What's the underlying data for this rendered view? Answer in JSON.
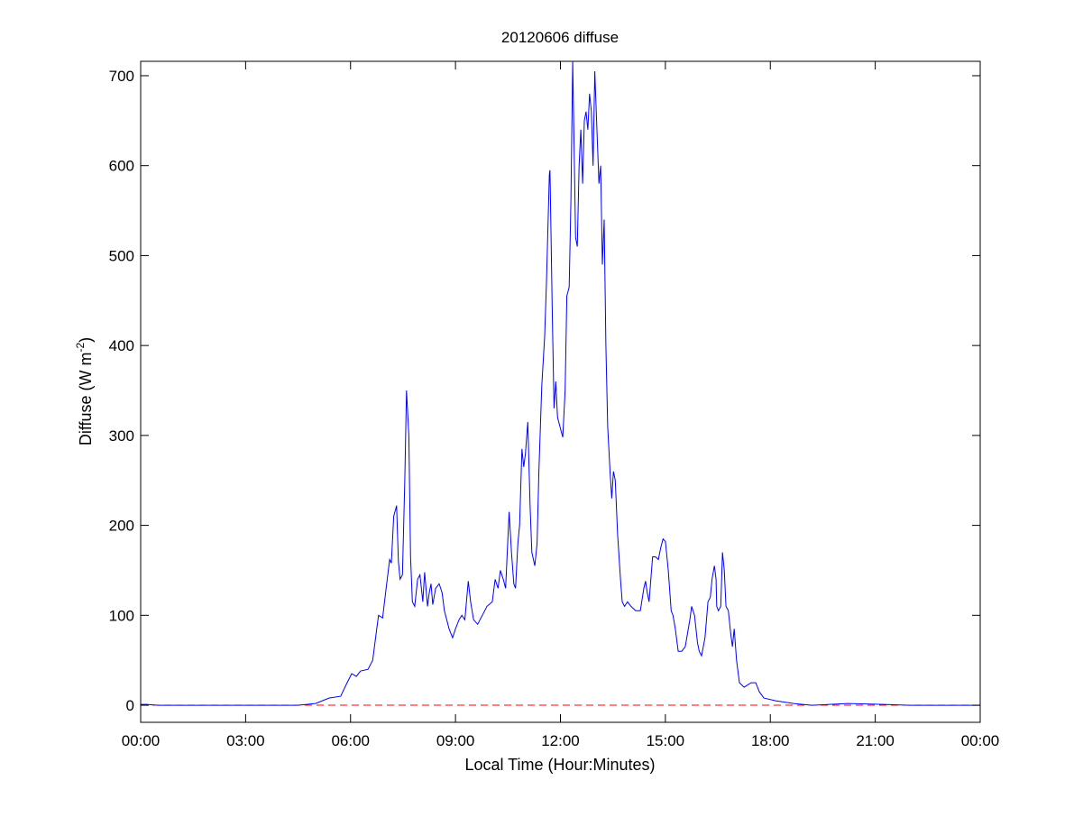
{
  "chart_data": {
    "type": "line",
    "title": "20120606 diffuse",
    "xlabel": "Local Time (Hour:Minutes)",
    "ylabel": "Diffuse (W m",
    "ylabel_sup": "-2",
    "ylabel_close": ")",
    "xlim": [
      "00:00",
      "24:00"
    ],
    "ylim": [
      -19,
      716
    ],
    "x_ticks": [
      "00:00",
      "03:00",
      "06:00",
      "09:00",
      "12:00",
      "15:00",
      "18:00",
      "21:00",
      "00:00"
    ],
    "y_ticks": [
      0,
      100,
      200,
      300,
      400,
      500,
      600,
      700
    ],
    "grid": false,
    "colors": {
      "series": "#0000ff",
      "reference": "#ff0000"
    },
    "reference_line": {
      "y": 0,
      "style": "dashed"
    },
    "series": [
      {
        "points": [
          [
            "00:00",
            1
          ],
          [
            "00:10",
            1
          ],
          [
            "00:30",
            0
          ],
          [
            "04:29",
            0
          ],
          [
            "05:00",
            2
          ],
          [
            "05:23",
            8
          ],
          [
            "05:43",
            10
          ],
          [
            "05:54",
            25
          ],
          [
            "06:02",
            35
          ],
          [
            "06:10",
            32
          ],
          [
            "06:17",
            38
          ],
          [
            "06:30",
            40
          ],
          [
            "06:38",
            50
          ],
          [
            "06:45",
            85
          ],
          [
            "06:48",
            100
          ],
          [
            "06:55",
            97
          ],
          [
            "07:01",
            130
          ],
          [
            "07:07",
            162
          ],
          [
            "07:10",
            158
          ],
          [
            "07:14",
            210
          ],
          [
            "07:19",
            222
          ],
          [
            "07:22",
            160
          ],
          [
            "07:25",
            140
          ],
          [
            "07:29",
            145
          ],
          [
            "07:33",
            250
          ],
          [
            "07:36",
            350
          ],
          [
            "07:40",
            300
          ],
          [
            "07:43",
            165
          ],
          [
            "07:46",
            115
          ],
          [
            "07:50",
            110
          ],
          [
            "07:55",
            140
          ],
          [
            "07:59",
            145
          ],
          [
            "08:04",
            115
          ],
          [
            "08:07",
            148
          ],
          [
            "08:12",
            110
          ],
          [
            "08:15",
            125
          ],
          [
            "08:18",
            135
          ],
          [
            "08:21",
            112
          ],
          [
            "08:26",
            130
          ],
          [
            "08:32",
            135
          ],
          [
            "08:37",
            125
          ],
          [
            "08:41",
            105
          ],
          [
            "08:49",
            85
          ],
          [
            "08:55",
            75
          ],
          [
            "09:00",
            85
          ],
          [
            "09:06",
            95
          ],
          [
            "09:11",
            100
          ],
          [
            "09:16",
            95
          ],
          [
            "09:22",
            138
          ],
          [
            "09:26",
            115
          ],
          [
            "09:31",
            95
          ],
          [
            "09:38",
            90
          ],
          [
            "09:46",
            100
          ],
          [
            "09:54",
            110
          ],
          [
            "10:03",
            115
          ],
          [
            "10:08",
            140
          ],
          [
            "10:13",
            130
          ],
          [
            "10:17",
            150
          ],
          [
            "10:22",
            140
          ],
          [
            "10:26",
            130
          ],
          [
            "10:32",
            215
          ],
          [
            "10:36",
            170
          ],
          [
            "10:40",
            135
          ],
          [
            "10:43",
            130
          ],
          [
            "10:47",
            180
          ],
          [
            "10:50",
            200
          ],
          [
            "10:54",
            285
          ],
          [
            "10:57",
            265
          ],
          [
            "11:00",
            280
          ],
          [
            "11:04",
            315
          ],
          [
            "11:08",
            220
          ],
          [
            "11:11",
            170
          ],
          [
            "11:16",
            155
          ],
          [
            "11:20",
            180
          ],
          [
            "11:23",
            260
          ],
          [
            "11:28",
            355
          ],
          [
            "11:33",
            410
          ],
          [
            "11:36",
            470
          ],
          [
            "11:41",
            590
          ],
          [
            "11:42",
            595
          ],
          [
            "11:46",
            440
          ],
          [
            "11:49",
            330
          ],
          [
            "11:52",
            360
          ],
          [
            "11:55",
            320
          ],
          [
            "11:59",
            310
          ],
          [
            "12:04",
            298
          ],
          [
            "12:08",
            350
          ],
          [
            "12:11",
            455
          ],
          [
            "12:15",
            465
          ],
          [
            "12:18",
            560
          ],
          [
            "12:21",
            716
          ],
          [
            "12:24",
            600
          ],
          [
            "12:26",
            520
          ],
          [
            "12:29",
            510
          ],
          [
            "12:32",
            600
          ],
          [
            "12:35",
            640
          ],
          [
            "12:38",
            580
          ],
          [
            "12:41",
            650
          ],
          [
            "12:44",
            660
          ],
          [
            "12:47",
            640
          ],
          [
            "12:50",
            680
          ],
          [
            "12:53",
            660
          ],
          [
            "12:56",
            600
          ],
          [
            "12:59",
            705
          ],
          [
            "13:02",
            650
          ],
          [
            "13:06",
            580
          ],
          [
            "13:09",
            600
          ],
          [
            "13:12",
            490
          ],
          [
            "13:15",
            540
          ],
          [
            "13:18",
            400
          ],
          [
            "13:21",
            310
          ],
          [
            "13:25",
            260
          ],
          [
            "13:28",
            230
          ],
          [
            "13:31",
            260
          ],
          [
            "13:34",
            250
          ],
          [
            "13:38",
            190
          ],
          [
            "13:43",
            140
          ],
          [
            "13:46",
            115
          ],
          [
            "13:50",
            110
          ],
          [
            "13:55",
            115
          ],
          [
            "14:01",
            110
          ],
          [
            "14:09",
            105
          ],
          [
            "14:17",
            105
          ],
          [
            "14:23",
            130
          ],
          [
            "14:26",
            138
          ],
          [
            "14:29",
            125
          ],
          [
            "14:32",
            115
          ],
          [
            "14:38",
            165
          ],
          [
            "14:43",
            165
          ],
          [
            "14:48",
            162
          ],
          [
            "14:52",
            175
          ],
          [
            "14:56",
            185
          ],
          [
            "15:00",
            182
          ],
          [
            "15:05",
            150
          ],
          [
            "15:10",
            105
          ],
          [
            "15:13",
            100
          ],
          [
            "15:17",
            85
          ],
          [
            "15:22",
            60
          ],
          [
            "15:28",
            60
          ],
          [
            "15:34",
            65
          ],
          [
            "15:42",
            95
          ],
          [
            "15:45",
            110
          ],
          [
            "15:50",
            100
          ],
          [
            "15:55",
            70
          ],
          [
            "15:58",
            60
          ],
          [
            "16:02",
            55
          ],
          [
            "16:08",
            75
          ],
          [
            "16:13",
            115
          ],
          [
            "16:17",
            120
          ],
          [
            "16:20",
            140
          ],
          [
            "16:24",
            155
          ],
          [
            "16:27",
            140
          ],
          [
            "16:28",
            110
          ],
          [
            "16:31",
            105
          ],
          [
            "16:35",
            110
          ],
          [
            "16:38",
            170
          ],
          [
            "16:41",
            150
          ],
          [
            "16:44",
            110
          ],
          [
            "16:48",
            105
          ],
          [
            "16:52",
            80
          ],
          [
            "16:55",
            65
          ],
          [
            "16:58",
            85
          ],
          [
            "17:02",
            50
          ],
          [
            "17:07",
            25
          ],
          [
            "17:15",
            20
          ],
          [
            "17:27",
            25
          ],
          [
            "17:35",
            25
          ],
          [
            "17:41",
            15
          ],
          [
            "17:49",
            8
          ],
          [
            "18:09",
            5
          ],
          [
            "18:40",
            2
          ],
          [
            "19:11",
            0
          ],
          [
            "20:13",
            2
          ],
          [
            "21:14",
            1
          ],
          [
            "22:00",
            0
          ],
          [
            "24:00",
            0
          ]
        ]
      }
    ]
  }
}
